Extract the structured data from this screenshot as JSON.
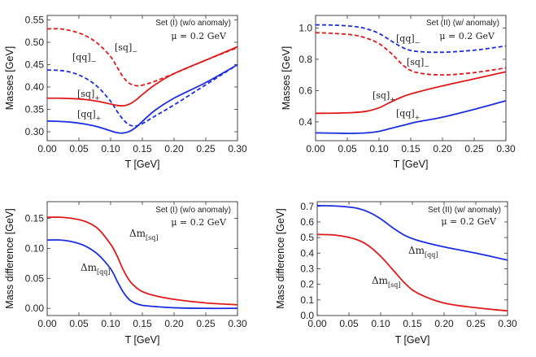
{
  "chart_data": [
    {
      "type": "line",
      "xlabel": "T [GeV]",
      "ylabel": "Masses [GeV]",
      "xlim": [
        0,
        0.3
      ],
      "ylim": [
        0.28,
        0.56
      ],
      "xticks": [
        "0.00",
        "0.05",
        "0.10",
        "0.15",
        "0.20",
        "0.25",
        "0.30"
      ],
      "yticks": [
        "0.30",
        "0.35",
        "0.40",
        "0.45",
        "0.50",
        "0.55"
      ],
      "set_label": "Set (I) (w/o anomaly)",
      "mu_label": "μ = 0.2 GeV",
      "series": [
        {
          "name": "[sq]_-",
          "label_main": "[sq]",
          "label_sub": "−",
          "color": "#e01a1a",
          "dashed": true,
          "x": [
            0,
            0.02,
            0.04,
            0.06,
            0.08,
            0.1,
            0.11,
            0.12,
            0.13,
            0.14,
            0.15,
            0.17,
            0.2,
            0.25,
            0.3
          ],
          "y": [
            0.53,
            0.53,
            0.525,
            0.515,
            0.497,
            0.468,
            0.445,
            0.422,
            0.408,
            0.403,
            0.404,
            0.413,
            0.43,
            0.46,
            0.488
          ]
        },
        {
          "name": "[qq]_-",
          "label_main": "[qq]",
          "label_sub": "−",
          "color": "#1a2ee0",
          "dashed": true,
          "x": [
            0,
            0.02,
            0.04,
            0.06,
            0.08,
            0.1,
            0.11,
            0.12,
            0.13,
            0.14,
            0.15,
            0.17,
            0.2,
            0.25,
            0.3
          ],
          "y": [
            0.438,
            0.437,
            0.432,
            0.42,
            0.4,
            0.368,
            0.346,
            0.327,
            0.315,
            0.313,
            0.318,
            0.335,
            0.36,
            0.405,
            0.45
          ]
        },
        {
          "name": "[sq]_+",
          "label_main": "[sq]",
          "label_sub": "+",
          "color": "#e01a1a",
          "dashed": false,
          "x": [
            0,
            0.02,
            0.04,
            0.06,
            0.08,
            0.1,
            0.11,
            0.12,
            0.13,
            0.14,
            0.15,
            0.17,
            0.2,
            0.25,
            0.3
          ],
          "y": [
            0.375,
            0.375,
            0.374,
            0.372,
            0.368,
            0.362,
            0.359,
            0.358,
            0.362,
            0.371,
            0.383,
            0.405,
            0.43,
            0.46,
            0.49
          ]
        },
        {
          "name": "[qq]_+",
          "label_main": "[qq]",
          "label_sub": "+",
          "color": "#1a2ee0",
          "dashed": false,
          "x": [
            0,
            0.02,
            0.04,
            0.06,
            0.08,
            0.1,
            0.11,
            0.12,
            0.13,
            0.14,
            0.15,
            0.17,
            0.2,
            0.25,
            0.3
          ],
          "y": [
            0.324,
            0.323,
            0.321,
            0.317,
            0.311,
            0.302,
            0.298,
            0.297,
            0.301,
            0.31,
            0.323,
            0.348,
            0.375,
            0.41,
            0.45
          ]
        }
      ]
    },
    {
      "type": "line",
      "xlabel": "T [GeV]",
      "ylabel": "Masses [GeV]",
      "xlim": [
        0,
        0.3
      ],
      "ylim": [
        0.28,
        1.08
      ],
      "xticks": [
        "0.00",
        "0.05",
        "0.10",
        "0.15",
        "0.20",
        "0.25",
        "0.30"
      ],
      "yticks": [
        "0.4",
        "0.6",
        "0.8",
        "1.0"
      ],
      "set_label": "Set (II) (w/ anomaly)",
      "mu_label": "μ = 0.2 GeV",
      "series": [
        {
          "name": "[qq]_-",
          "label_main": "[qq]",
          "label_sub": "−",
          "color": "#1a2ee0",
          "dashed": true,
          "x": [
            0,
            0.03,
            0.06,
            0.08,
            0.1,
            0.12,
            0.14,
            0.16,
            0.2,
            0.25,
            0.3
          ],
          "y": [
            1.02,
            1.018,
            1.01,
            0.995,
            0.965,
            0.915,
            0.87,
            0.85,
            0.845,
            0.858,
            0.885
          ]
        },
        {
          "name": "[sq]_-",
          "label_main": "[sq]",
          "label_sub": "−",
          "color": "#e01a1a",
          "dashed": true,
          "x": [
            0,
            0.03,
            0.06,
            0.08,
            0.1,
            0.12,
            0.14,
            0.16,
            0.2,
            0.25,
            0.3
          ],
          "y": [
            0.97,
            0.965,
            0.955,
            0.935,
            0.9,
            0.835,
            0.755,
            0.715,
            0.7,
            0.715,
            0.745
          ]
        },
        {
          "name": "[sq]_+",
          "label_main": "[sq]",
          "label_sub": "+",
          "color": "#e01a1a",
          "dashed": false,
          "x": [
            0,
            0.03,
            0.06,
            0.08,
            0.1,
            0.12,
            0.14,
            0.16,
            0.2,
            0.25,
            0.3
          ],
          "y": [
            0.455,
            0.456,
            0.46,
            0.468,
            0.49,
            0.53,
            0.565,
            0.59,
            0.63,
            0.675,
            0.72
          ]
        },
        {
          "name": "[qq]_+",
          "label_main": "[qq]",
          "label_sub": "+",
          "color": "#1a2ee0",
          "dashed": false,
          "x": [
            0,
            0.03,
            0.06,
            0.08,
            0.1,
            0.12,
            0.14,
            0.16,
            0.2,
            0.25,
            0.3
          ],
          "y": [
            0.33,
            0.328,
            0.327,
            0.33,
            0.34,
            0.36,
            0.38,
            0.4,
            0.43,
            0.48,
            0.535
          ]
        }
      ]
    },
    {
      "type": "line",
      "xlabel": "T [GeV]",
      "ylabel": "Mass difference [GeV]",
      "xlim": [
        0,
        0.3
      ],
      "ylim": [
        -0.012,
        0.178
      ],
      "xticks": [
        "0.00",
        "0.05",
        "0.10",
        "0.15",
        "0.20",
        "0.25",
        "0.30"
      ],
      "yticks": [
        "0.00",
        "0.05",
        "0.10",
        "0.15"
      ],
      "set_label": "Set (I) (w/o anomaly)",
      "mu_label": "μ = 0.2 GeV",
      "series": [
        {
          "name": "Δm_[sq]",
          "label_main": "Δm",
          "label_sub": "[sq]",
          "color": "#e01a1a",
          "dashed": false,
          "x": [
            0,
            0.02,
            0.04,
            0.06,
            0.08,
            0.1,
            0.11,
            0.12,
            0.13,
            0.14,
            0.15,
            0.17,
            0.2,
            0.25,
            0.3
          ],
          "y": [
            0.152,
            0.152,
            0.15,
            0.145,
            0.133,
            0.107,
            0.088,
            0.064,
            0.046,
            0.035,
            0.028,
            0.021,
            0.015,
            0.009,
            0.006
          ]
        },
        {
          "name": "Δm_[qq]",
          "label_main": "Δm",
          "label_sub": "[qq]",
          "color": "#1a2ee0",
          "dashed": false,
          "x": [
            0,
            0.02,
            0.04,
            0.06,
            0.08,
            0.1,
            0.11,
            0.12,
            0.13,
            0.14,
            0.15,
            0.17,
            0.2,
            0.25,
            0.3
          ],
          "y": [
            0.114,
            0.114,
            0.111,
            0.104,
            0.09,
            0.066,
            0.046,
            0.027,
            0.014,
            0.008,
            0.005,
            0.003,
            0.001,
            0.0,
            0.0
          ]
        }
      ]
    },
    {
      "type": "line",
      "xlabel": "T [GeV]",
      "ylabel": "Mass difference [GeV]",
      "xlim": [
        0,
        0.3
      ],
      "ylim": [
        0,
        0.73
      ],
      "xticks": [
        "0.00",
        "0.05",
        "0.10",
        "0.15",
        "0.20",
        "0.25",
        "0.30"
      ],
      "yticks": [
        "0.0",
        "0.1",
        "0.2",
        "0.3",
        "0.4",
        "0.5",
        "0.6",
        "0.7"
      ],
      "set_label": "Set (II) (w/ anomaly)",
      "mu_label": "μ = 0.2 GeV",
      "series": [
        {
          "name": "Δm_[qq]",
          "label_main": "Δm",
          "label_sub": "[qq]",
          "color": "#1a2ee0",
          "dashed": false,
          "x": [
            0,
            0.03,
            0.06,
            0.08,
            0.1,
            0.12,
            0.14,
            0.16,
            0.2,
            0.25,
            0.3
          ],
          "y": [
            0.705,
            0.702,
            0.69,
            0.665,
            0.62,
            0.56,
            0.51,
            0.48,
            0.44,
            0.4,
            0.355
          ]
        },
        {
          "name": "Δm_[sq]",
          "label_main": "Δm",
          "label_sub": "[sq]",
          "color": "#e01a1a",
          "dashed": false,
          "x": [
            0,
            0.03,
            0.06,
            0.08,
            0.1,
            0.12,
            0.14,
            0.16,
            0.2,
            0.25,
            0.3
          ],
          "y": [
            0.52,
            0.515,
            0.49,
            0.45,
            0.38,
            0.29,
            0.2,
            0.14,
            0.08,
            0.05,
            0.03
          ]
        }
      ]
    }
  ]
}
